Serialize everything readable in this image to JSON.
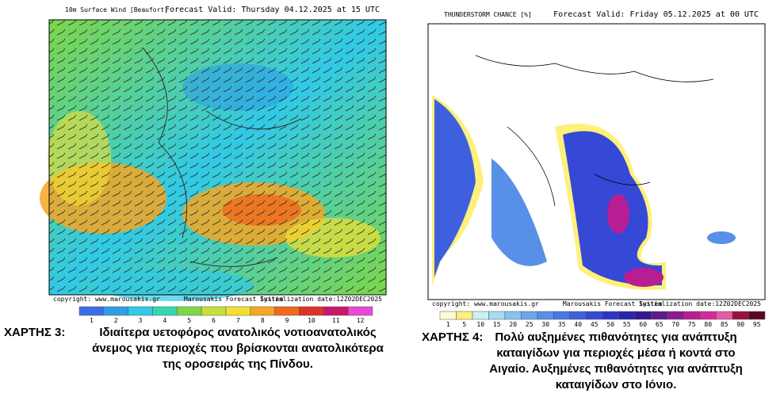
{
  "maps": [
    {
      "title": "10m Surface Wind [Beaufort]",
      "forecast": "Forecast Valid:  Thursday 04.12.2025 at 15 UTC",
      "copyright": "copyright: www.marousakis.gr",
      "system": "Marousakis Forecast System",
      "init": "Initialization date:12Z02DEC2025",
      "scale_labels": [
        1,
        2,
        3,
        4,
        5,
        6,
        7,
        8,
        9,
        10,
        11,
        12
      ],
      "scale_colors": [
        "#3a6ee8",
        "#2f9fe6",
        "#31c9e6",
        "#35d6b0",
        "#7dd64a",
        "#c6e03a",
        "#f2e030",
        "#f5a623",
        "#ef6a1e",
        "#e0302a",
        "#c8186c",
        "#e84ad6"
      ],
      "caption_label": "ΧΑΡΤΗΣ 3:",
      "caption": [
        "Ιδιαίτερα υετοφόρος ανατολικός νοτιοανατολικός",
        "άνεμος για περιοχές που βρίσκονται ανατολικότερα",
        "της οροσειράς της Πίνδου."
      ]
    },
    {
      "title": "THUNDERSTORM CHANCE [%]",
      "forecast": "Forecast Valid:  Friday 05.12.2025 at 00 UTC",
      "copyright": "copyright: www.marousakis.gr",
      "system": "Marousakis Forecast System",
      "init": "Initialization date:12Z02DEC2025",
      "scale_labels": [
        1,
        5,
        10,
        15,
        20,
        25,
        30,
        35,
        40,
        45,
        50,
        55,
        60,
        65,
        70,
        75,
        80,
        85,
        90,
        95
      ],
      "scale_colors": [
        "#fffbd0",
        "#fff07a",
        "#c8f0f8",
        "#a8dcf5",
        "#86c4f0",
        "#69a8ec",
        "#5890e8",
        "#4a78e4",
        "#3f60de",
        "#3548d6",
        "#2d34c8",
        "#2a24b0",
        "#34188e",
        "#5c1a8c",
        "#8a1c90",
        "#b81e94",
        "#d8289a",
        "#e85aa8",
        "#9a1040",
        "#5a0820"
      ],
      "caption_label": "ΧΑΡΤΗΣ 4:",
      "caption": [
        "Πολύ αυξημένες πιθανότητες για ανάπτυξη",
        "καταιγίδων για περιοχές μέσα ή κοντά στο",
        "Αιγαίο. Αυξημένες πιθανότητες για ανάπτυξη",
        "καταιγίδων στο Ιόνιο."
      ]
    }
  ]
}
